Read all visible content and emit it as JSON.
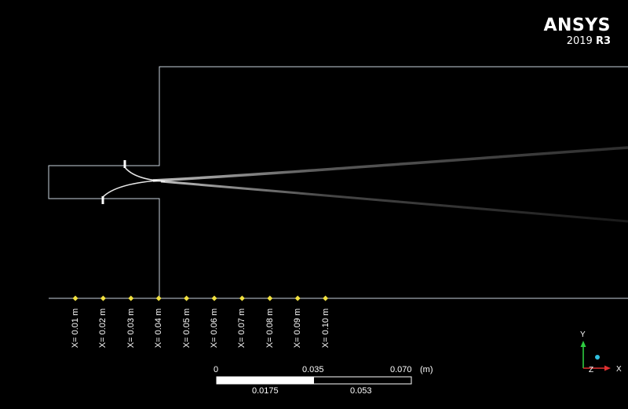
{
  "logo": {
    "brand": "ANSYS",
    "version_year": "2019",
    "version_release": "R3"
  },
  "stations": [
    {
      "label": "X= 0.01 m",
      "x_m": 0.01
    },
    {
      "label": "X= 0.02 m",
      "x_m": 0.02
    },
    {
      "label": "X= 0.03 m",
      "x_m": 0.03
    },
    {
      "label": "X= 0.04 m",
      "x_m": 0.04
    },
    {
      "label": "X= 0.05 m",
      "x_m": 0.05
    },
    {
      "label": "X= 0.06 m",
      "x_m": 0.06
    },
    {
      "label": "X= 0.07 m",
      "x_m": 0.07
    },
    {
      "label": "X= 0.08 m",
      "x_m": 0.08
    },
    {
      "label": "X= 0.09 m",
      "x_m": 0.09
    },
    {
      "label": "X= 0.10 m",
      "x_m": 0.1
    }
  ],
  "scale_bar": {
    "top_labels": [
      "0",
      "0.035",
      "0.070"
    ],
    "bottom_labels": [
      "0.0175",
      "0.053"
    ],
    "unit": "(m)"
  },
  "triad": {
    "y_label": "Y",
    "z_label": "Z",
    "x_label": "X"
  },
  "colors": {
    "background": "#000000",
    "geometry_outline": "#c8d2dc",
    "station_marker": "#f0e040",
    "axis_y": "#2ecc40",
    "axis_x": "#e03030",
    "axis_z": "#30c0e0"
  }
}
